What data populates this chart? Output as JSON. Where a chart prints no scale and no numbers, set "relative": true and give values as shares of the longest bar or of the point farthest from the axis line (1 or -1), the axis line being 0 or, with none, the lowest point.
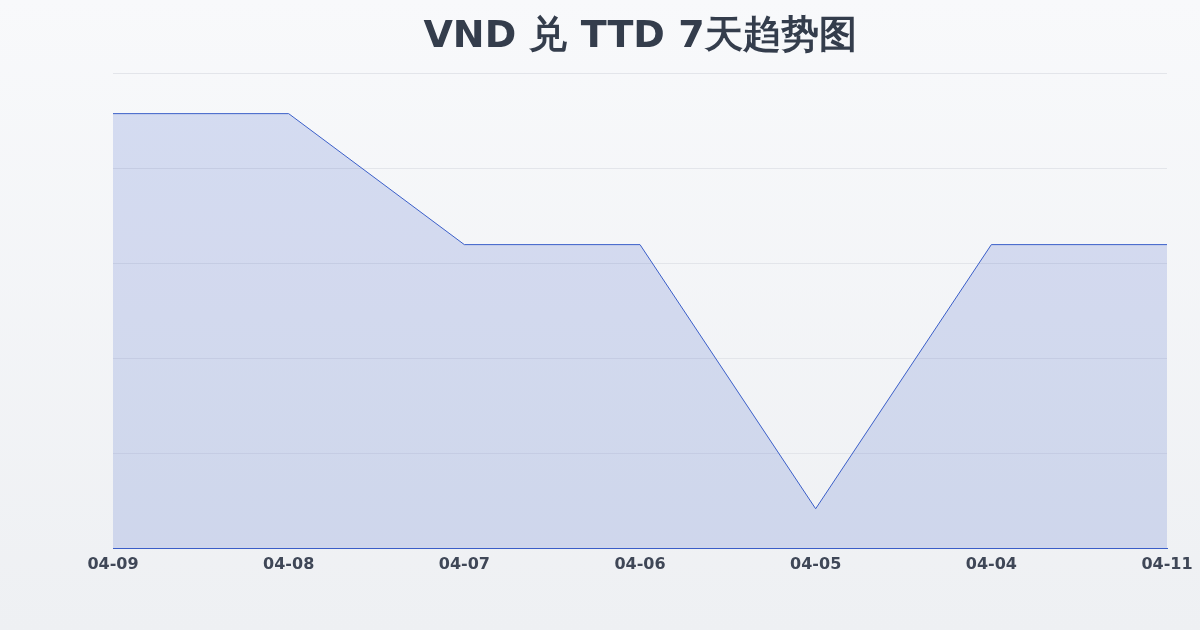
{
  "chart_data": {
    "type": "area",
    "title": "VND 兑 TTD 7天趋势图",
    "relative": true,
    "grid": "y",
    "categories": [
      "04-09",
      "04-08",
      "04-07",
      "04-06",
      "04-05",
      "04-04",
      "04-11"
    ],
    "series": [
      {
        "color": "#3b5fc9",
        "values": [
          1,
          1,
          0.699,
          0.699,
          0.092,
          0.699,
          0.699
        ]
      }
    ]
  }
}
